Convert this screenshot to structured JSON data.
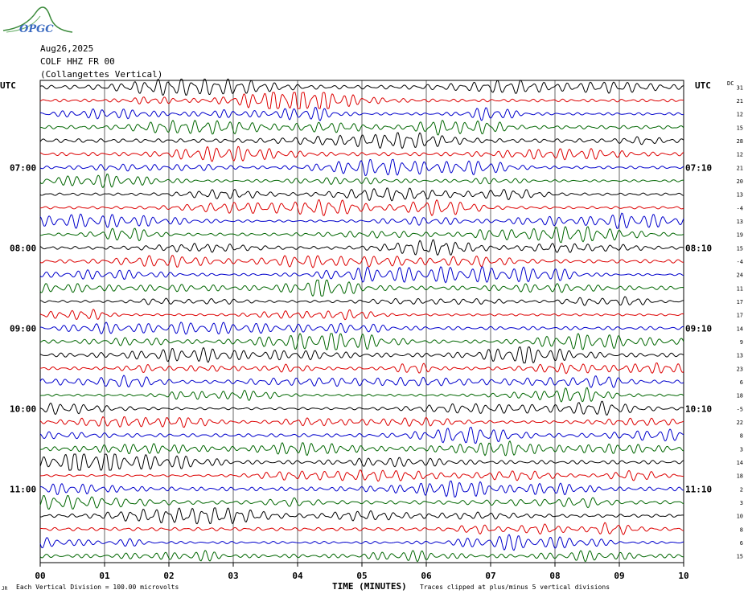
{
  "logo": {
    "text": "OPGC"
  },
  "header": {
    "date": "Aug26,2025",
    "station": "COLF HHZ FR 00",
    "location": "(Collangettes Vertical)"
  },
  "left_axis": {
    "label": "UTC",
    "hour_labels": [
      "07:00",
      "08:00",
      "09:00",
      "10:00",
      "11:00"
    ]
  },
  "right_axis": {
    "label": "UTC",
    "hour_labels": [
      "07:10",
      "08:10",
      "09:10",
      "10:10",
      "11:10"
    ]
  },
  "dc_header": "DC",
  "footer": {
    "left_mark": "JR",
    "scale_note": "Each Vertical Division =  100.00 microvolts",
    "xlabel": "TIME (MINUTES)",
    "clip_note": "Traces clipped at plus/minus 5 vertical divisions"
  },
  "colors": [
    "#000000",
    "#dd0000",
    "#0000cc",
    "#006600"
  ],
  "chart_data": {
    "type": "line",
    "title": "",
    "xlabel": "TIME (MINUTES)",
    "ylabel": "",
    "x_ticks": [
      "00",
      "01",
      "02",
      "03",
      "04",
      "05",
      "06",
      "07",
      "08",
      "09",
      "10"
    ],
    "xlim": [
      0,
      10
    ],
    "rows": 36,
    "trace_color_cycle": [
      "black",
      "red",
      "blue",
      "green"
    ],
    "dc_offsets": [
      31,
      21,
      12,
      15,
      28,
      12,
      21,
      20,
      13,
      -4,
      13,
      19,
      15,
      -4,
      24,
      11,
      17,
      17,
      14,
      9,
      13,
      23,
      6,
      18,
      -5,
      22,
      8,
      3,
      14,
      18,
      2,
      3,
      10,
      8,
      6,
      15
    ],
    "grid": true
  }
}
